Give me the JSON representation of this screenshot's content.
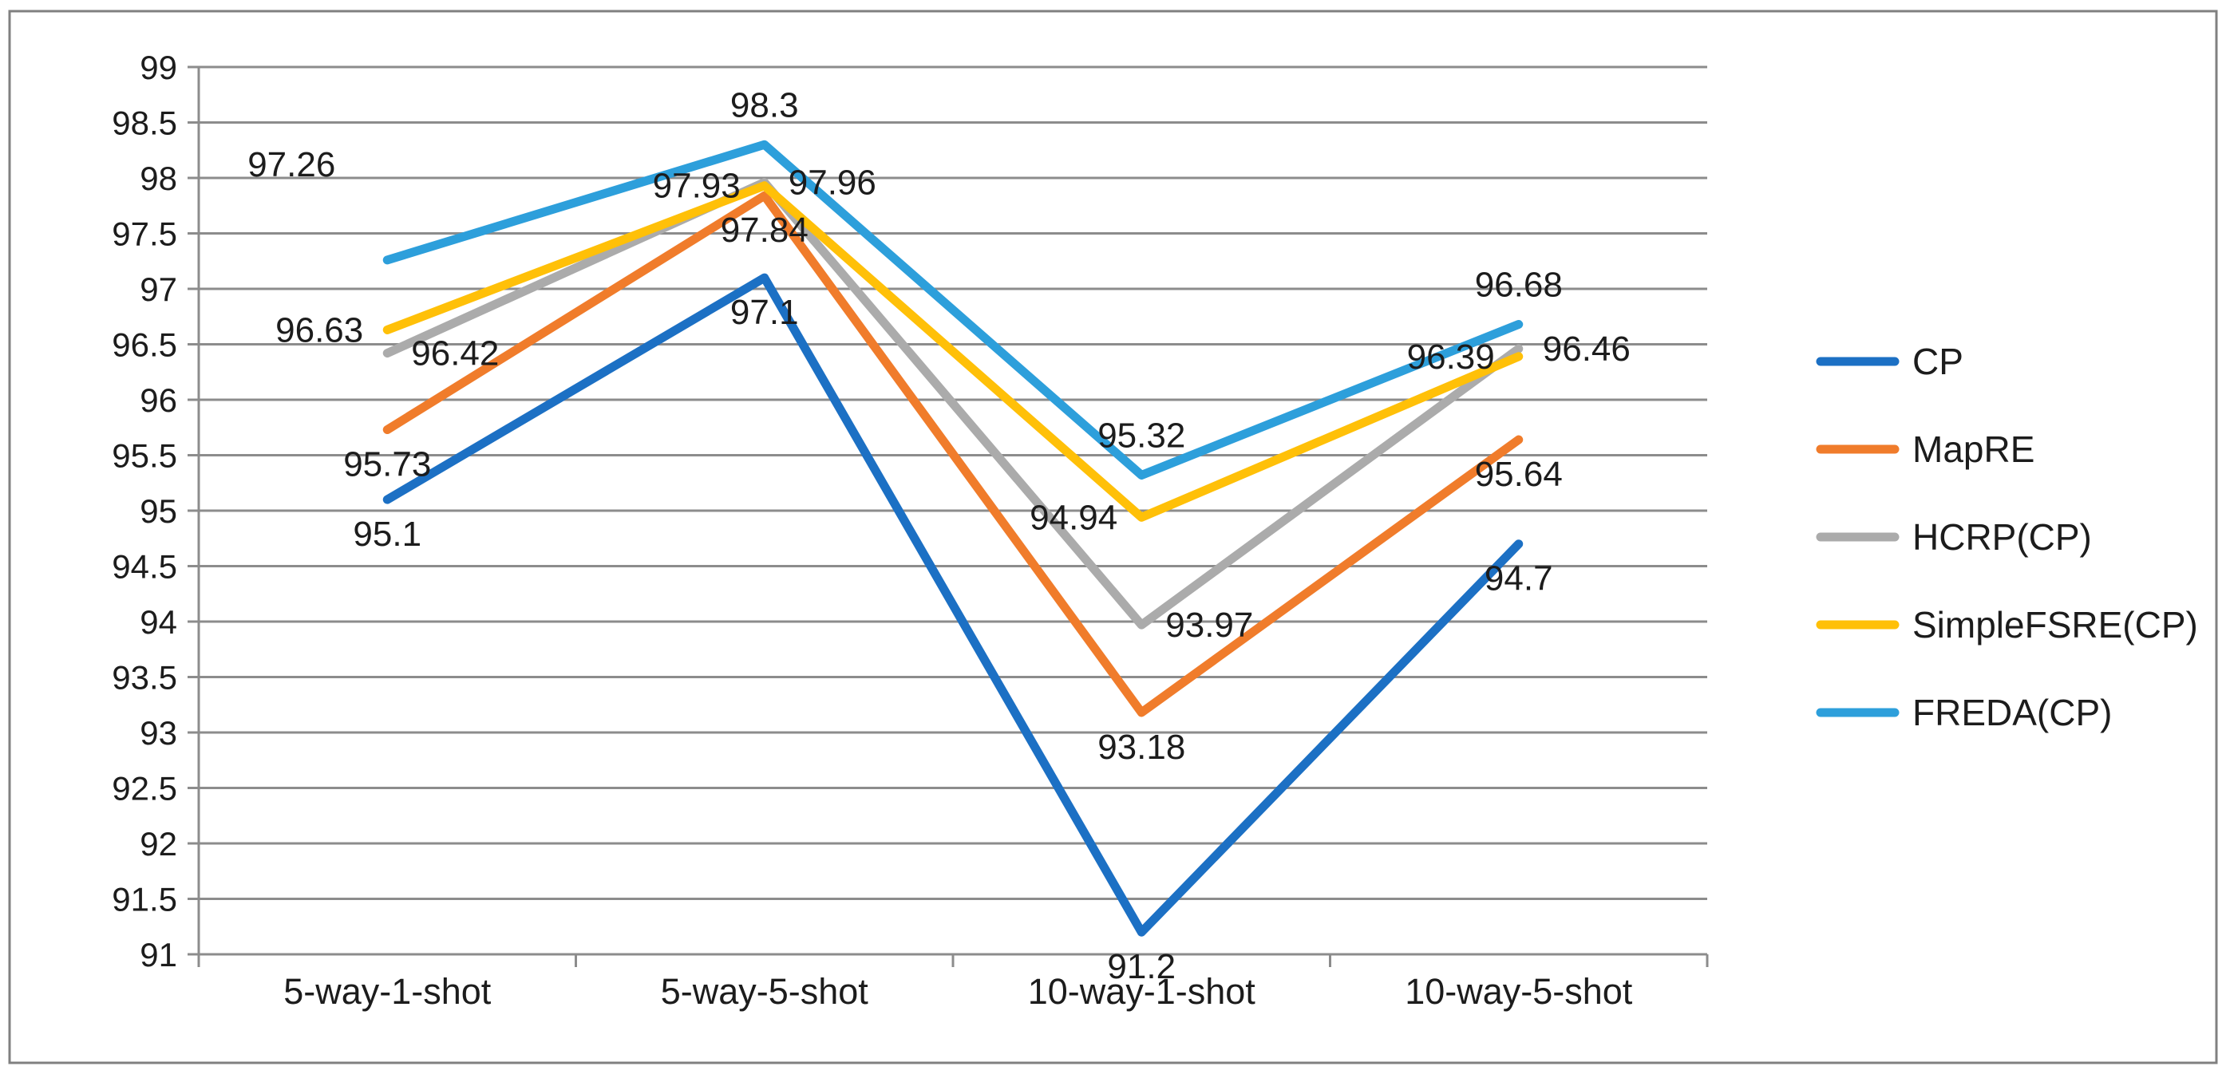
{
  "chart_data": {
    "type": "line",
    "title": "",
    "xlabel": "",
    "ylabel": "",
    "categories": [
      "5-way-1-shot",
      "5-way-5-shot",
      "10-way-1-shot",
      "10-way-5-shot"
    ],
    "series": [
      {
        "name": "CP",
        "color": "#1C70C4",
        "values": [
          95.1,
          97.1,
          91.2,
          94.7
        ],
        "label_positions": [
          "below",
          "below",
          "below",
          "below"
        ]
      },
      {
        "name": "MapRE",
        "color": "#F07C2B",
        "values": [
          95.73,
          97.84,
          93.18,
          95.64
        ],
        "label_positions": [
          "below",
          "below",
          "below",
          "below"
        ]
      },
      {
        "name": "HCRP(CP)",
        "color": "#ABABAB",
        "values": [
          96.42,
          97.96,
          93.97,
          96.46
        ],
        "label_positions": [
          "right",
          "right",
          "right",
          "right"
        ]
      },
      {
        "name": "SimpleFSRE(CP)",
        "color": "#FFC008",
        "values": [
          96.63,
          97.93,
          94.94,
          96.39
        ],
        "label_positions": [
          "left",
          "left",
          "left",
          "left"
        ]
      },
      {
        "name": "FREDA(CP)",
        "color": "#2D9FDB",
        "values": [
          97.26,
          98.3,
          95.32,
          96.68
        ],
        "label_positions": [
          "above-left-far",
          "above",
          "above",
          "above"
        ]
      }
    ],
    "ylim": [
      91,
      99
    ],
    "ytick_step": 0.5,
    "grid": true,
    "legend_position": "right",
    "colors": {
      "grid": "#8C8C8C",
      "axis": "#8C8C8C",
      "text": "#1C1C1C",
      "frame_border": "#808080",
      "background": "#FFFFFF"
    }
  }
}
